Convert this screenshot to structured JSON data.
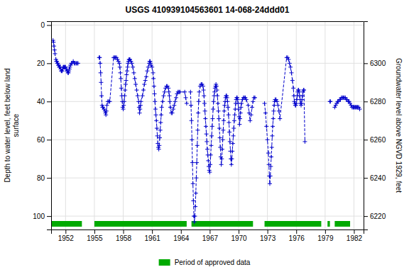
{
  "chart_data": {
    "type": "line",
    "title": "USGS 410939104563601 14-068-24ddd01",
    "ylabel": "Depth to water level, feet below land\nsurface",
    "y2label": "Groundwater level above NGVD 1929, feet",
    "xlim": [
      1950.5,
      1983.0
    ],
    "xticks": [
      1952,
      1955,
      1958,
      1961,
      1964,
      1967,
      1970,
      1973,
      1976,
      1979,
      1982
    ],
    "ylim": [
      107,
      -2
    ],
    "yticks": [
      0,
      20,
      40,
      60,
      80,
      100
    ],
    "y2lim": [
      6213,
      6322
    ],
    "y2ticks": [
      6220,
      6240,
      6260,
      6280,
      6300
    ],
    "grid": true,
    "legend": "bottom",
    "color": "#0000cc",
    "marker": "plus",
    "line_style": "dashed",
    "approved_periods": {
      "label": "Period of approved data",
      "color": "#00aa00",
      "periods": [
        [
          1950.5,
          1953.7
        ],
        [
          1955.0,
          1964.6
        ],
        [
          1965.1,
          1971.5
        ],
        [
          1972.7,
          1978.6
        ],
        [
          1979.25,
          1979.5
        ],
        [
          1980.0,
          1981.6
        ]
      ]
    },
    "series": [
      {
        "x": [
          1950.7,
          1950.75,
          1950.8,
          1950.85,
          1950.9,
          1951.0,
          1951.05,
          1951.1,
          1951.15,
          1951.2,
          1951.25,
          1951.3,
          1951.35,
          1951.4,
          1951.45,
          1951.5,
          1951.55,
          1951.6,
          1951.65,
          1951.7,
          1951.75,
          1951.8,
          1951.85,
          1951.9,
          1951.95,
          1952.0,
          1952.05,
          1952.1,
          1952.15,
          1952.2,
          1952.25,
          1952.3,
          1952.35,
          1952.4,
          1952.45,
          1952.5,
          1952.6,
          1952.7,
          1952.8,
          1952.9,
          1953.0,
          1953.1,
          1953.2,
          1953.3
        ],
        "values": [
          8,
          9,
          11,
          13,
          15,
          18,
          19,
          19,
          20,
          20,
          21,
          21,
          22,
          22,
          22,
          23,
          24,
          24,
          24,
          23,
          22,
          22,
          22,
          22,
          22,
          22,
          23,
          23,
          24,
          24,
          25,
          25,
          24,
          23,
          22,
          21,
          20,
          20,
          19,
          20,
          20,
          20,
          20,
          20
        ]
      },
      {
        "x": [
          1955.5,
          1955.55,
          1955.6,
          1955.65,
          1955.7,
          1955.75,
          1955.8,
          1955.85,
          1955.9,
          1956.0,
          1956.1,
          1956.15,
          1956.2,
          1956.25,
          1956.3,
          1956.4,
          1956.5,
          1956.6,
          1957.0,
          1957.1,
          1957.2,
          1957.3,
          1957.4,
          1957.5,
          1957.6,
          1957.65,
          1957.7,
          1957.75,
          1957.8,
          1957.85,
          1957.9,
          1957.95,
          1958.0,
          1958.05,
          1958.1,
          1958.15,
          1958.2,
          1958.25,
          1958.3,
          1958.35,
          1958.4,
          1958.45,
          1958.5,
          1958.55,
          1958.6,
          1958.65,
          1958.7,
          1958.8,
          1958.9,
          1959.0,
          1959.1,
          1959.2,
          1959.3,
          1959.4,
          1959.5,
          1959.6,
          1959.65,
          1959.7,
          1959.75,
          1959.8,
          1959.85,
          1960.0,
          1960.1,
          1960.2,
          1960.3,
          1960.4,
          1960.5,
          1960.6,
          1960.7,
          1960.75,
          1960.8,
          1960.85,
          1960.9,
          1961.0,
          1961.1,
          1961.15,
          1961.2,
          1961.25,
          1961.3,
          1961.35,
          1961.4,
          1961.45,
          1961.5,
          1961.55,
          1961.6,
          1961.65,
          1961.7,
          1961.75,
          1961.8,
          1961.85,
          1961.9,
          1961.95,
          1962.0,
          1962.1,
          1962.2,
          1962.3,
          1962.4,
          1962.5,
          1962.6,
          1962.7,
          1962.75,
          1962.8,
          1962.85,
          1962.9,
          1963.0,
          1963.1,
          1963.2,
          1963.3,
          1963.4,
          1963.5,
          1963.6,
          1963.7,
          1963.8,
          1963.9,
          1964.4,
          1964.5,
          1964.6
        ],
        "values": [
          17,
          17,
          20,
          25,
          30,
          37,
          42,
          43,
          43,
          44,
          45,
          46,
          47,
          45,
          42,
          40,
          40,
          40,
          17,
          17,
          17,
          17,
          18,
          19,
          20,
          22,
          25,
          28,
          33,
          37,
          40,
          43,
          44,
          42,
          40,
          37,
          34,
          31,
          29,
          26,
          24,
          22,
          20,
          19,
          18,
          18,
          18,
          19,
          20,
          22,
          25,
          28,
          31,
          34,
          37,
          40,
          43,
          46,
          44,
          42,
          40,
          37,
          34,
          31,
          29,
          27,
          24,
          22,
          20,
          19,
          19,
          20,
          21,
          22,
          25,
          28,
          32,
          36,
          40,
          44,
          47,
          50,
          54,
          58,
          62,
          64,
          65,
          63,
          59,
          55,
          51,
          47,
          43,
          40,
          37,
          35,
          33,
          32,
          32,
          33,
          35,
          37,
          40,
          43,
          46,
          46,
          44,
          42,
          40,
          38,
          36,
          35,
          35,
          35,
          35,
          38,
          41
        ]
      },
      {
        "x": [
          1965.0,
          1965.05,
          1965.1,
          1965.15,
          1965.2,
          1965.25,
          1965.3,
          1965.35,
          1965.4,
          1965.45,
          1965.5,
          1965.55,
          1965.6,
          1965.65,
          1965.7,
          1965.75,
          1965.8,
          1965.85,
          1965.9,
          1966.0,
          1966.1,
          1966.2,
          1966.3,
          1966.35,
          1966.4,
          1966.45,
          1966.5,
          1966.55,
          1966.6,
          1966.65,
          1966.7,
          1966.75,
          1966.8,
          1966.85,
          1966.9,
          1966.95,
          1967.0,
          1967.05,
          1967.1,
          1967.15,
          1967.2,
          1967.25,
          1967.3,
          1967.35,
          1967.4,
          1967.45,
          1967.5,
          1967.55,
          1967.6,
          1967.65,
          1967.7,
          1967.75,
          1967.8,
          1967.85,
          1967.9,
          1967.95,
          1968.0,
          1968.05,
          1968.1,
          1968.15,
          1968.2,
          1968.25,
          1968.3,
          1968.35,
          1968.4,
          1968.45,
          1968.5,
          1968.55,
          1968.6,
          1968.65,
          1968.7,
          1968.75,
          1968.8,
          1968.85,
          1968.9,
          1968.95,
          1969.0,
          1969.05,
          1969.1,
          1969.15,
          1969.2,
          1969.25,
          1969.3,
          1969.35,
          1969.4,
          1969.45,
          1969.5,
          1969.55,
          1969.6,
          1969.65,
          1969.7,
          1969.75,
          1969.8,
          1969.85,
          1969.9,
          1969.95,
          1970.0,
          1970.05,
          1970.1,
          1970.15,
          1970.2,
          1970.25,
          1970.3,
          1970.4,
          1970.5,
          1970.6,
          1970.7,
          1970.8,
          1971.0,
          1971.1,
          1971.2,
          1971.3,
          1971.4,
          1971.5,
          1971.6,
          1971.7
        ],
        "values": [
          35,
          42,
          50,
          60,
          72,
          83,
          92,
          100,
          103,
          100,
          95,
          88,
          80,
          72,
          63,
          55,
          46,
          40,
          35,
          32,
          31,
          31,
          32,
          34,
          37,
          41,
          45,
          49,
          53,
          57,
          61,
          65,
          68,
          71,
          74,
          76,
          77,
          73,
          68,
          63,
          58,
          53,
          49,
          44,
          40,
          37,
          35,
          33,
          32,
          31,
          32,
          34,
          37,
          41,
          45,
          49,
          54,
          59,
          64,
          69,
          73,
          70,
          65,
          60,
          55,
          50,
          45,
          42,
          40,
          38,
          37,
          37,
          38,
          40,
          43,
          47,
          51,
          56,
          61,
          66,
          70,
          73,
          70,
          66,
          62,
          58,
          54,
          50,
          47,
          44,
          41,
          39,
          38,
          38,
          39,
          41,
          44,
          48,
          52,
          49,
          46,
          43,
          41,
          39,
          38,
          38,
          38,
          39,
          42,
          46,
          50,
          47,
          43,
          40,
          38,
          38
        ]
      },
      {
        "x": [
          1972.7,
          1972.8,
          1972.9,
          1973.0,
          1973.1,
          1973.15,
          1973.2,
          1973.25,
          1973.3,
          1973.35,
          1973.4,
          1973.45,
          1973.5,
          1973.55,
          1973.6,
          1973.65,
          1973.7,
          1973.75,
          1973.8,
          1973.9,
          1974.0,
          1974.1,
          1974.2,
          1974.3,
          1975.0,
          1975.1,
          1975.2,
          1975.3,
          1975.4,
          1975.5,
          1975.6,
          1975.7,
          1975.75,
          1975.8,
          1975.85,
          1975.9,
          1975.95,
          1976.0,
          1976.05,
          1976.1,
          1976.15,
          1976.2,
          1976.25,
          1976.3,
          1976.35,
          1976.4,
          1976.45,
          1976.5,
          1976.55,
          1976.6,
          1976.65,
          1976.7,
          1976.75,
          1976.8,
          1976.9
        ],
        "values": [
          41,
          46,
          53,
          60,
          67,
          73,
          79,
          83,
          79,
          74,
          69,
          64,
          58,
          53,
          49,
          45,
          42,
          40,
          39,
          39,
          40,
          42,
          45,
          49,
          17,
          17,
          18,
          20,
          22,
          25,
          29,
          33,
          37,
          40,
          41,
          42,
          42,
          41,
          39,
          37,
          35,
          34,
          34,
          35,
          37,
          39,
          41,
          42,
          41,
          39,
          37,
          35,
          34,
          34,
          61
        ]
      },
      {
        "x": [
          1979.5,
          1979.55
        ],
        "values": [
          40,
          40
        ]
      },
      {
        "x": [
          1980.0,
          1980.1,
          1980.2,
          1980.3,
          1980.4,
          1980.5,
          1980.6,
          1980.7,
          1980.8,
          1980.9,
          1981.0,
          1981.1,
          1981.2,
          1981.3,
          1981.4,
          1981.5,
          1981.6,
          1981.7,
          1981.8,
          1981.9,
          1981.95,
          1982.0,
          1982.1,
          1982.15,
          1982.2,
          1982.3,
          1982.35,
          1982.4,
          1982.5,
          1982.6
        ],
        "values": [
          43,
          42,
          41,
          40,
          40,
          39,
          39,
          38,
          38,
          38,
          38,
          38,
          39,
          39,
          40,
          40,
          41,
          42,
          43,
          43,
          43,
          43,
          43,
          43,
          43,
          43,
          43,
          43,
          43,
          44
        ]
      }
    ]
  }
}
